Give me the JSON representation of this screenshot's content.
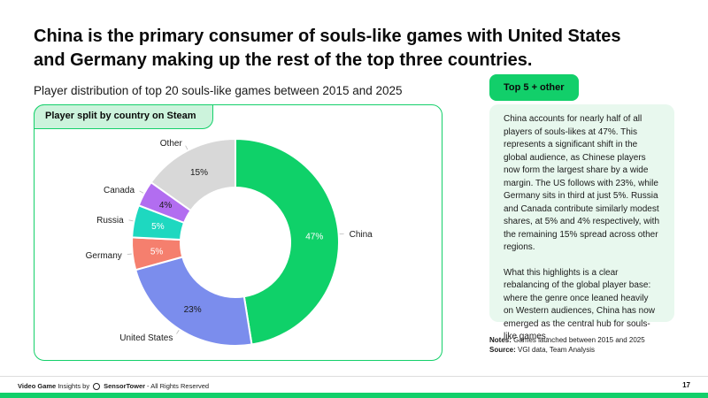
{
  "header": {
    "title_line1": "China is the primary consumer of souls-like games with United States",
    "title_line2": "and Germany making up the rest of the top three countries.",
    "subtitle": "Player distribution of top 20 souls-like games between 2015 and 2025"
  },
  "panel": {
    "tab_label": "Player split by country on Steam"
  },
  "side": {
    "tab_label": "Top 5 + other",
    "paragraph1": "China accounts for nearly half of all players of souls-likes at 47%. This represents a significant shift in the global audience, as Chinese players now form the largest share by a wide margin. The US follows with 23%, while Germany sits in third at just 5%. Russia and Canada contribute similarly modest shares, at 5% and 4% respectively, with the remaining 15% spread across other regions.",
    "paragraph2": "What this highlights is a clear rebalancing of the global player base: where the genre once leaned heavily on Western audiences, China has now emerged as the central hub for souls-like games."
  },
  "notes": {
    "notes_label": "Notes:",
    "notes_text": "Games launched between 2015 and 2025",
    "source_label": "Source:",
    "source_text": "VGI data, Team Analysis"
  },
  "footer": {
    "brand_a": "Video Game",
    "brand_b": "Insights by",
    "brand_c": "SensorTower",
    "rights": "- All Rights Reserved",
    "page": "17"
  },
  "chart_data": {
    "type": "pie",
    "donut": true,
    "categories": [
      "China",
      "United States",
      "Germany",
      "Russia",
      "Canada",
      "Other"
    ],
    "values": [
      47,
      23,
      5,
      5,
      4,
      15
    ],
    "value_labels": [
      "47%",
      "23%",
      "5%",
      "5%",
      "4%",
      "15%"
    ],
    "colors": [
      "#0fd169",
      "#7b8ded",
      "#f57f6e",
      "#1ed8c0",
      "#b26df0",
      "#d8d8d8"
    ],
    "label_colors": [
      "#ffffff",
      "#1a1a1a",
      "#ffffff",
      "#ffffff",
      "#1a1a1a",
      "#1a1a1a"
    ],
    "title": "Player split by country on Steam",
    "legend": "none"
  }
}
